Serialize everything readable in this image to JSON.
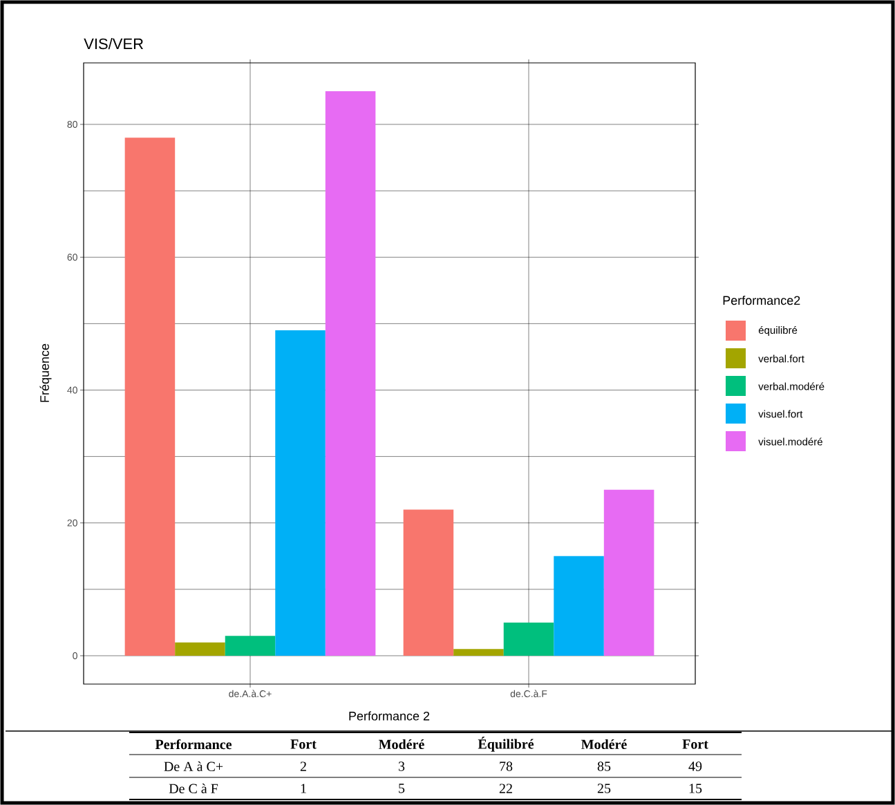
{
  "chart_data": {
    "type": "bar",
    "title": "VIS/VER",
    "xlabel": "Performance 2",
    "ylabel": "Fréquence",
    "legend_title": "Performance2",
    "categories": [
      "de.A.à.C+",
      "de.C.à.F"
    ],
    "series": [
      {
        "name": "équilibré",
        "color": "#f8766d",
        "values": [
          78,
          22
        ]
      },
      {
        "name": "verbal.fort",
        "color": "#a3a500",
        "values": [
          2,
          1
        ]
      },
      {
        "name": "verbal.modéré",
        "color": "#00bf7d",
        "values": [
          3,
          5
        ]
      },
      {
        "name": "visuel.fort",
        "color": "#00b0f6",
        "values": [
          49,
          15
        ]
      },
      {
        "name": "visuel.modéré",
        "color": "#e76bf3",
        "values": [
          85,
          25
        ]
      }
    ],
    "ylim": [
      -4.27,
      89.26
    ],
    "yticks": [
      0,
      20,
      40,
      60,
      80
    ],
    "grid": true,
    "legend": "right",
    "annotations": [
      "Performance",
      "Fort",
      "Modéré",
      "Équilibré",
      "Modéré",
      "Fort",
      "De A à C+",
      "2",
      "3",
      "78",
      "85",
      "49",
      "De C à F",
      "1",
      "5",
      "22",
      "25",
      "15"
    ]
  }
}
